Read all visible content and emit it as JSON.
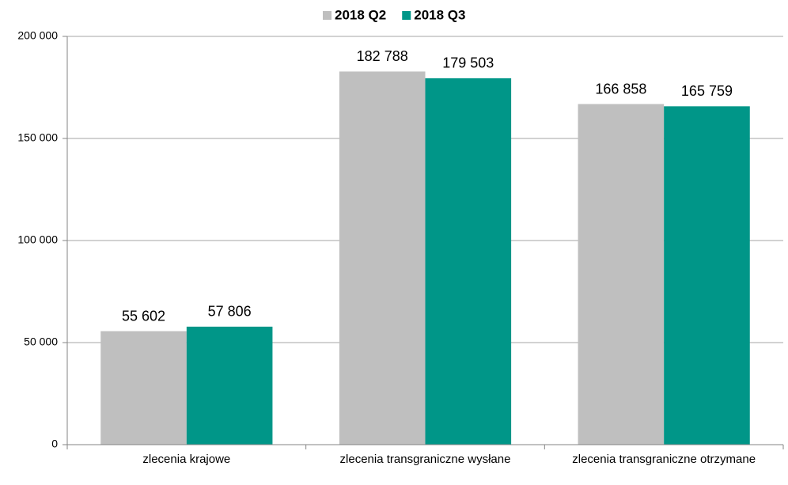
{
  "chart_data": {
    "type": "bar",
    "categories": [
      "zlecenia krajowe",
      "zlecenia transgraniczne wysłane",
      "zlecenia transgraniczne otrzymane"
    ],
    "series": [
      {
        "name": "2018 Q2",
        "color": "#bfbfbf",
        "values": [
          55602,
          182788,
          166858
        ],
        "value_labels": [
          "55 602",
          "182 788",
          "166 858"
        ]
      },
      {
        "name": "2018 Q3",
        "color": "#009688",
        "values": [
          57806,
          179503,
          165759
        ],
        "value_labels": [
          "57 806",
          "179 503",
          "165 759"
        ]
      }
    ],
    "ylim": [
      0,
      200000
    ],
    "yticks": [
      0,
      {
        "value": 50000,
        "label": "50 000"
      },
      {
        "value": 100000,
        "label": "100 000"
      },
      {
        "value": 150000,
        "label": "150 000"
      },
      {
        "value": 200000,
        "label": "200 000"
      }
    ],
    "grid": true,
    "legend": "top"
  }
}
